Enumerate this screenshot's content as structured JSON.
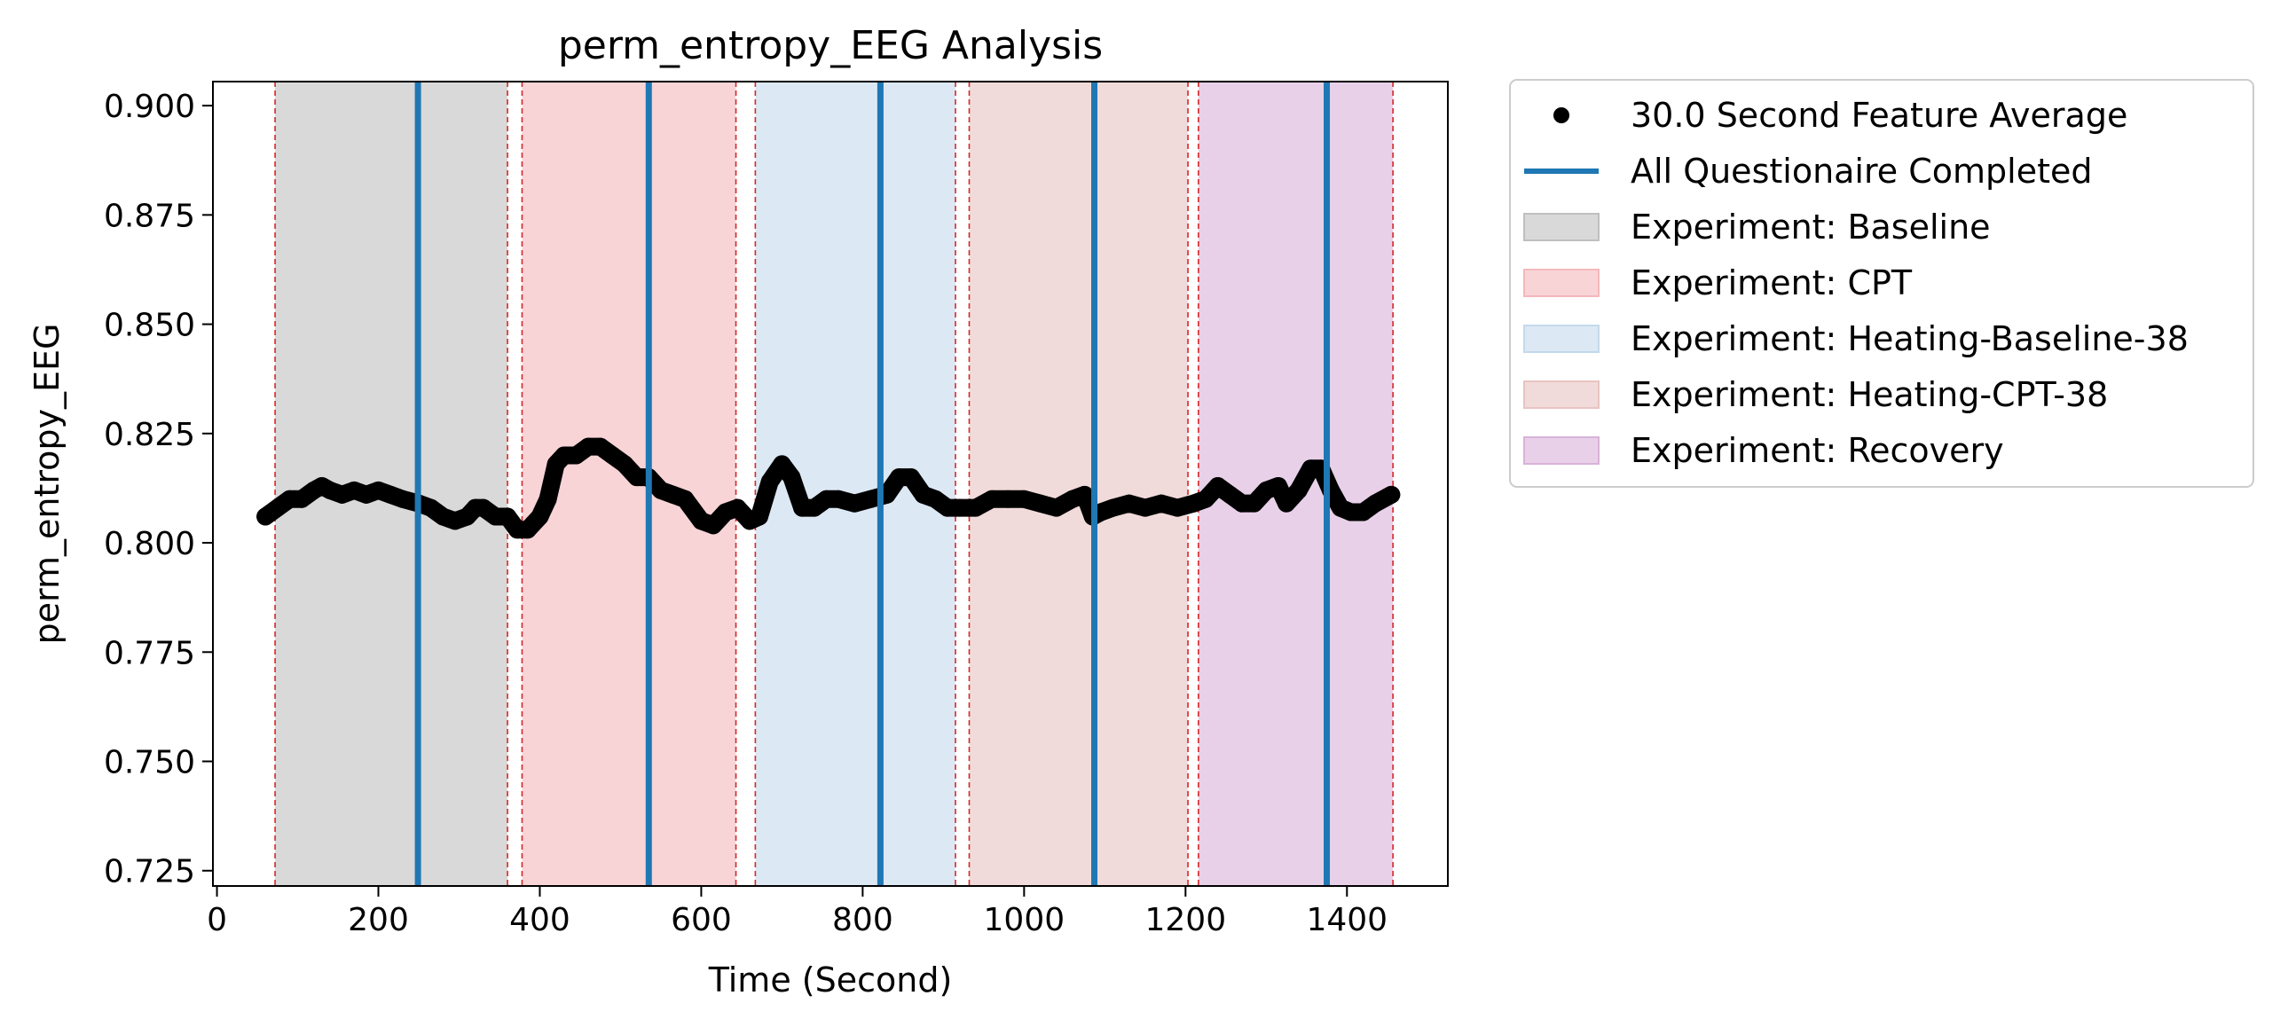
{
  "chart_data": {
    "type": "line",
    "title": "perm_entropy_EEG Analysis",
    "xlabel": "Time (Second)",
    "ylabel": "perm_entropy_EEG",
    "xlim": [
      -5,
      1525
    ],
    "ylim": [
      0.7215,
      0.9055
    ],
    "x_ticks": [
      0,
      200,
      400,
      600,
      800,
      1000,
      1200,
      1400
    ],
    "x_tick_labels": [
      "0",
      "200",
      "400",
      "600",
      "800",
      "1000",
      "1200",
      "1400"
    ],
    "y_ticks": [
      0.725,
      0.75,
      0.775,
      0.8,
      0.825,
      0.85,
      0.875,
      0.9
    ],
    "y_tick_labels": [
      "0.725",
      "0.750",
      "0.775",
      "0.800",
      "0.825",
      "0.850",
      "0.875",
      "0.900"
    ],
    "grid": false,
    "legend_position": "outside-right",
    "series": [
      {
        "name": "30.0 Second Feature Average",
        "color": "#000000",
        "marker": "circle",
        "x": [
          60,
          75,
          90,
          105,
          120,
          130,
          140,
          155,
          170,
          185,
          200,
          215,
          230,
          250,
          265,
          280,
          295,
          310,
          320,
          330,
          345,
          360,
          372,
          385,
          400,
          410,
          420,
          430,
          445,
          460,
          475,
          490,
          505,
          520,
          535,
          550,
          565,
          580,
          600,
          615,
          630,
          645,
          660,
          672,
          685,
          700,
          712,
          725,
          740,
          755,
          770,
          790,
          810,
          830,
          845,
          860,
          875,
          890,
          905,
          920,
          940,
          960,
          980,
          1000,
          1020,
          1040,
          1060,
          1075,
          1085,
          1095,
          1110,
          1130,
          1150,
          1170,
          1190,
          1210,
          1225,
          1240,
          1255,
          1270,
          1285,
          1300,
          1315,
          1325,
          1340,
          1355,
          1368,
          1380,
          1392,
          1405,
          1420,
          1435,
          1455
        ],
        "y": [
          0.806,
          0.808,
          0.81,
          0.81,
          0.812,
          0.813,
          0.812,
          0.811,
          0.812,
          0.811,
          0.812,
          0.811,
          0.81,
          0.809,
          0.808,
          0.806,
          0.805,
          0.806,
          0.808,
          0.808,
          0.806,
          0.806,
          0.803,
          0.803,
          0.806,
          0.81,
          0.818,
          0.82,
          0.82,
          0.822,
          0.822,
          0.82,
          0.818,
          0.815,
          0.815,
          0.812,
          0.811,
          0.81,
          0.805,
          0.804,
          0.807,
          0.808,
          0.805,
          0.806,
          0.814,
          0.818,
          0.815,
          0.808,
          0.808,
          0.81,
          0.81,
          0.809,
          0.81,
          0.811,
          0.815,
          0.815,
          0.811,
          0.81,
          0.808,
          0.808,
          0.808,
          0.81,
          0.81,
          0.81,
          0.809,
          0.808,
          0.81,
          0.811,
          0.806,
          0.807,
          0.808,
          0.809,
          0.808,
          0.809,
          0.808,
          0.809,
          0.81,
          0.813,
          0.811,
          0.809,
          0.809,
          0.812,
          0.813,
          0.809,
          0.812,
          0.817,
          0.817,
          0.812,
          0.808,
          0.807,
          0.807,
          0.809,
          0.811
        ]
      }
    ],
    "questionnaire_lines": {
      "name": "All Questionaire Completed",
      "color": "#1f77b4",
      "x": [
        249,
        535,
        822,
        1087,
        1375
      ]
    },
    "phases": [
      {
        "name": "Experiment: Baseline",
        "start": 72,
        "end": 360,
        "color": "#bfbfbf"
      },
      {
        "name": "Experiment: CPT",
        "start": 378,
        "end": 643,
        "color": "#f4b8bc"
      },
      {
        "name": "Experiment: Heating-Baseline-38",
        "start": 667,
        "end": 915,
        "color": "#c4d9ec"
      },
      {
        "name": "Experiment: Heating-CPT-38",
        "start": 932,
        "end": 1203,
        "color": "#e8c3c1"
      },
      {
        "name": "Experiment: Recovery",
        "start": 1216,
        "end": 1457,
        "color": "#d9b2d9"
      }
    ],
    "boundary_line_color": "#d62728"
  },
  "legend": {
    "entries": [
      {
        "label": "30.0 Second Feature Average",
        "kind": "dot",
        "color": "#000000"
      },
      {
        "label": "All Questionaire Completed",
        "kind": "line",
        "color": "#1f77b4"
      },
      {
        "label": "Experiment: Baseline",
        "kind": "patch",
        "color": "#bfbfbf"
      },
      {
        "label": "Experiment: CPT",
        "kind": "patch",
        "color": "#f4b8bc"
      },
      {
        "label": "Experiment: Heating-Baseline-38",
        "kind": "patch",
        "color": "#c4d9ec"
      },
      {
        "label": "Experiment: Heating-CPT-38",
        "kind": "patch",
        "color": "#e8c3c1"
      },
      {
        "label": "Experiment: Recovery",
        "kind": "patch",
        "color": "#d9b2d9"
      }
    ]
  }
}
